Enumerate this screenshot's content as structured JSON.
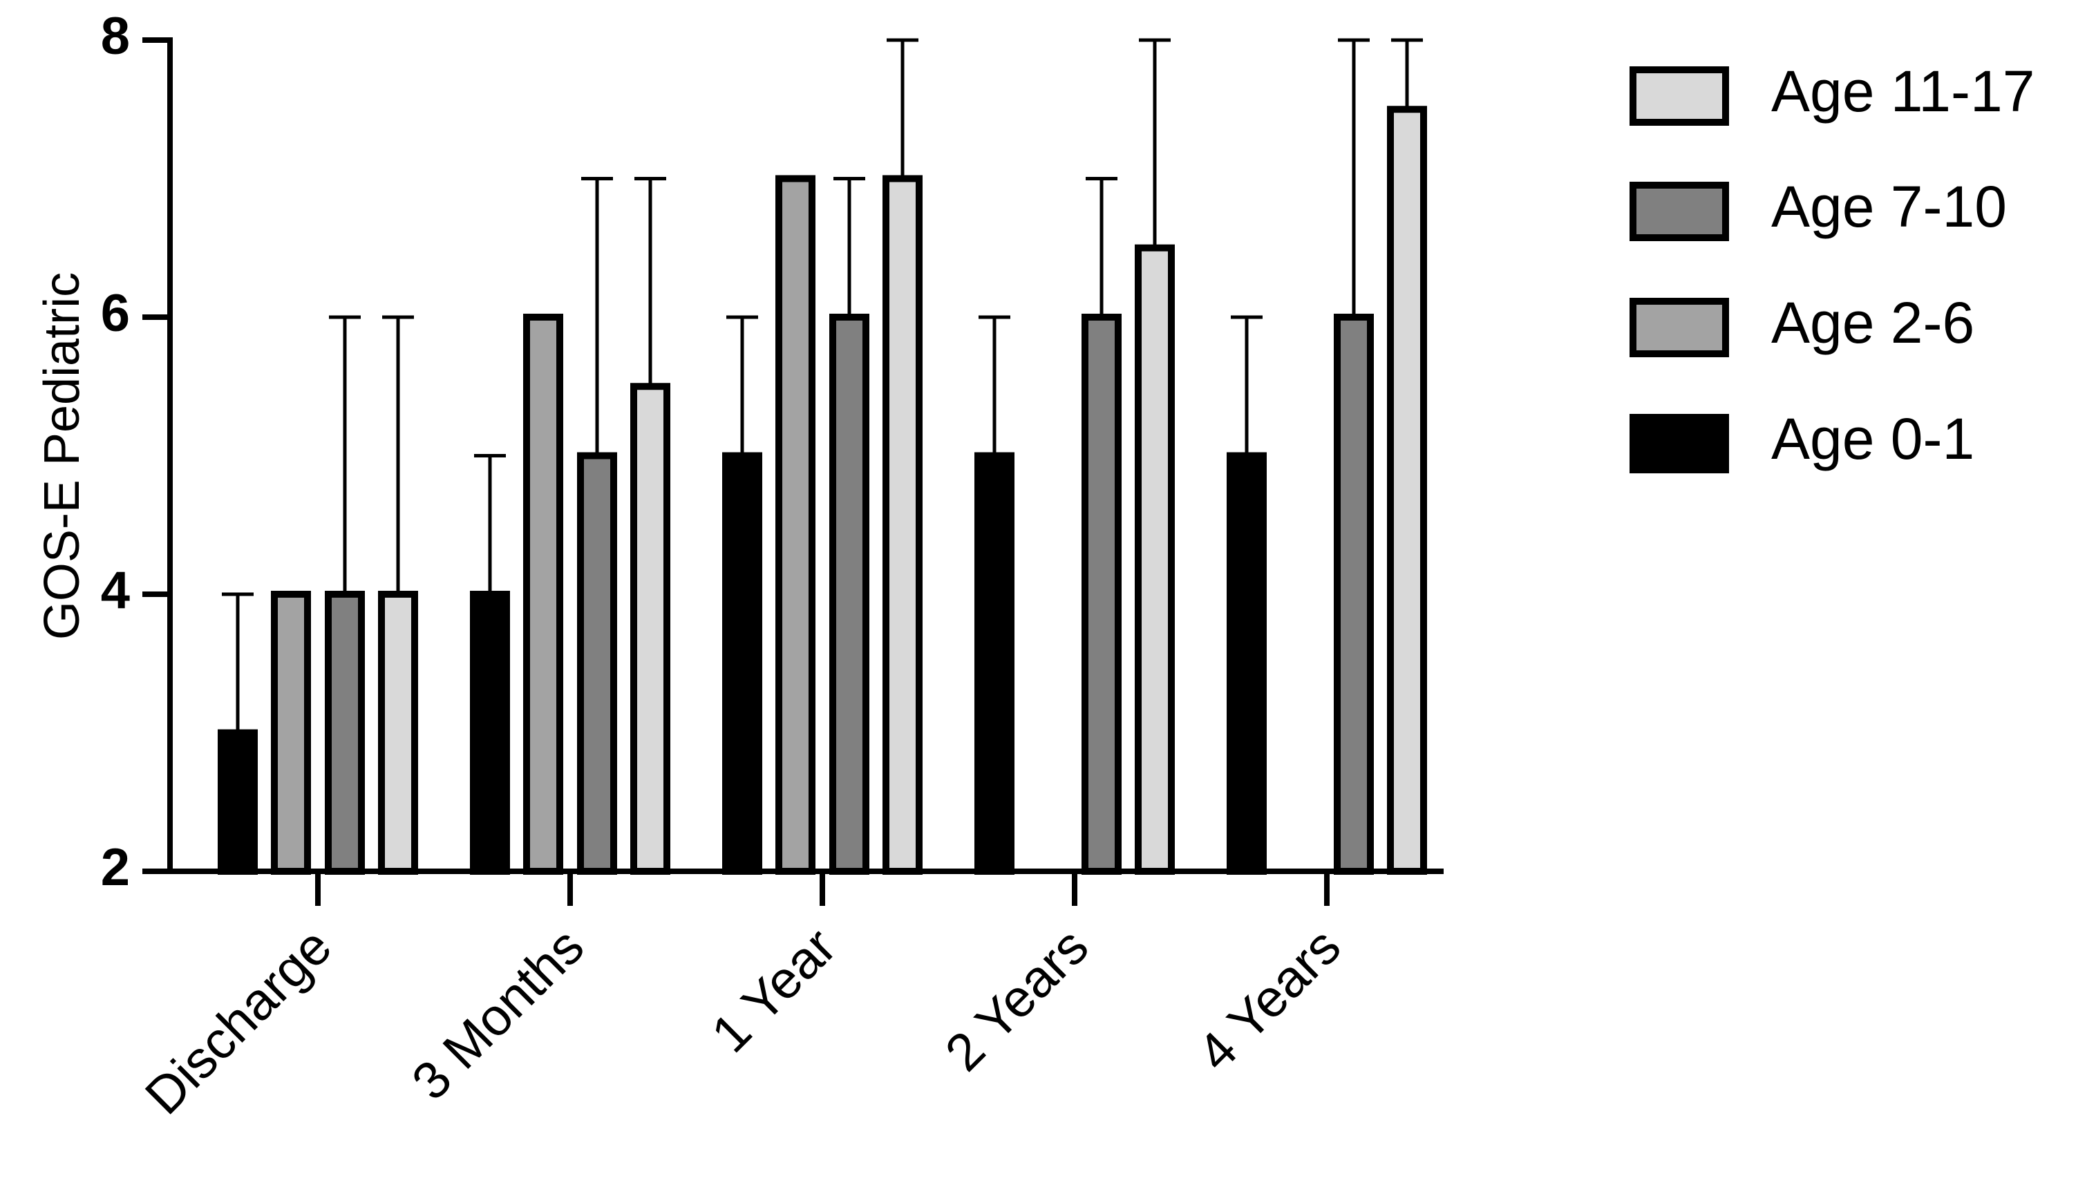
{
  "chart_data": {
    "type": "bar",
    "y_label": "GOS-E Pediatric",
    "categories": [
      "Discharge",
      "3 Months",
      "1 Year",
      "2 Years",
      "4 Years"
    ],
    "series": [
      {
        "name": "Age 0-1",
        "color": "#000000",
        "values": [
          3,
          4,
          5,
          5,
          5
        ],
        "errors": [
          1,
          1,
          1,
          1,
          1
        ]
      },
      {
        "name": "Age 2-6",
        "color": "#a3a3a3",
        "values": [
          4,
          6,
          7,
          null,
          null
        ],
        "errors": [
          0,
          0,
          0,
          null,
          null
        ]
      },
      {
        "name": "Age 7-10",
        "color": "#808080",
        "values": [
          4,
          5,
          6,
          6,
          6
        ],
        "errors": [
          2,
          2,
          1,
          1,
          2
        ]
      },
      {
        "name": "Age 11-17",
        "color": "#d9d9d9",
        "values": [
          4,
          5.5,
          7,
          6.5,
          7.5
        ],
        "errors": [
          2,
          1.5,
          1,
          1.5,
          0.5
        ]
      }
    ],
    "ylim": [
      2,
      8
    ],
    "yticks": [
      2,
      4,
      6,
      8
    ]
  }
}
